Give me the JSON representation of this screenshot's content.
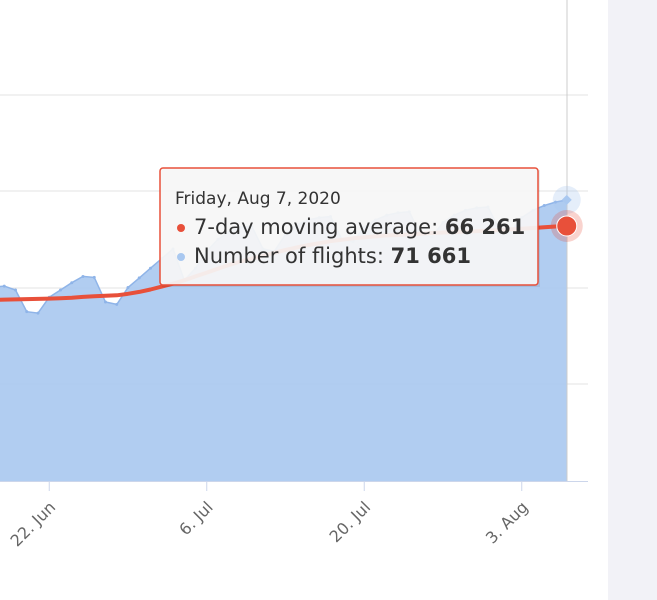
{
  "chart_data": {
    "type": "area-line",
    "categories": [
      null,
      null,
      null,
      null,
      null,
      "22. Jun",
      null,
      null,
      null,
      null,
      null,
      null,
      null,
      null,
      null,
      null,
      null,
      null,
      null,
      "6. Jul",
      null,
      null,
      null,
      null,
      null,
      null,
      null,
      null,
      null,
      null,
      null,
      null,
      null,
      "20. Jul",
      null,
      null,
      null,
      null,
      null,
      null,
      null,
      null,
      null,
      null,
      null,
      null,
      null,
      "3. Aug",
      null,
      null,
      null,
      null
    ],
    "ylim": [
      13400,
      113100
    ],
    "series": [
      {
        "name": "7-day moving average",
        "color": "#e8503a",
        "values": [
          50900,
          51000,
          51050,
          51100,
          51150,
          51200,
          51300,
          51400,
          51550,
          51700,
          51800,
          51900,
          52200,
          52600,
          53100,
          53700,
          54300,
          55000,
          55800,
          56600,
          57400,
          58200,
          58900,
          59500,
          60100,
          60700,
          61300,
          61800,
          62300,
          62700,
          63100,
          63400,
          63700,
          63900,
          64100,
          64300,
          64400,
          64500,
          64650,
          64800,
          64900,
          65000,
          65100,
          65200,
          65300,
          65400,
          65550,
          65700,
          65850,
          66000,
          66150,
          66261
        ],
        "value_labels": [
          null,
          null,
          null,
          null,
          null,
          null,
          null,
          null,
          null,
          null,
          null,
          null,
          null,
          null,
          null,
          null,
          null,
          null,
          null,
          null,
          null,
          null,
          null,
          null,
          null,
          null,
          null,
          null,
          null,
          null,
          null,
          null,
          null,
          null,
          null,
          null,
          null,
          null,
          null,
          null,
          null,
          null,
          null,
          null,
          null,
          null,
          null,
          null,
          null,
          null,
          null,
          "66 261"
        ]
      },
      {
        "name": "Number of flights",
        "color": "#a9c8f0",
        "values": [
          53600,
          53800,
          53000,
          48500,
          48200,
          51500,
          53000,
          54500,
          55800,
          55600,
          50500,
          50000,
          53500,
          55500,
          57500,
          59500,
          61500,
          55000,
          57500,
          61000,
          63500,
          65000,
          66000,
          66200,
          61500,
          61000,
          64500,
          66500,
          67500,
          68000,
          68200,
          63500,
          63000,
          66000,
          67500,
          68500,
          69000,
          69200,
          64500,
          64000,
          67000,
          68500,
          69500,
          70000,
          70200,
          65500,
          65000,
          68000,
          69500,
          70500,
          71200,
          71661
        ],
        "value_labels": [
          null,
          null,
          null,
          null,
          null,
          null,
          null,
          null,
          null,
          null,
          null,
          null,
          null,
          null,
          null,
          null,
          null,
          null,
          null,
          null,
          null,
          null,
          null,
          null,
          null,
          null,
          null,
          null,
          null,
          null,
          null,
          null,
          null,
          null,
          null,
          null,
          null,
          null,
          null,
          null,
          null,
          null,
          null,
          null,
          null,
          null,
          null,
          null,
          null,
          null,
          null,
          "71 661"
        ]
      }
    ],
    "tooltip": {
      "title": "Friday, Aug 7, 2020"
    }
  }
}
